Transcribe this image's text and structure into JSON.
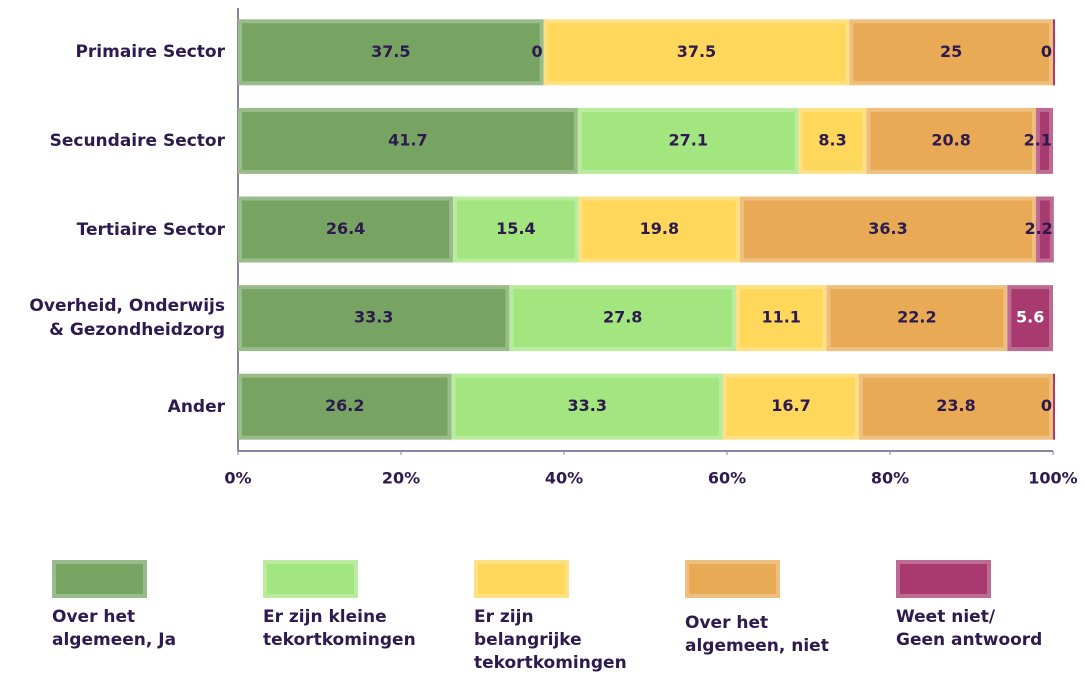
{
  "chart_data": {
    "type": "stacked-bar-horizontal",
    "categories": [
      "Primaire Sector",
      "Secundaire Sector",
      "Tertiaire Sector",
      "Overheid, Onderwijs\n& Gezondheidzorg",
      "Ander"
    ],
    "series": [
      {
        "name": "Over het\nalgemeen, Ja",
        "color": "#78a463",
        "values": [
          37.5,
          41.7,
          26.4,
          33.3,
          26.2
        ]
      },
      {
        "name": "Er zijn kleine\ntekortkomingen",
        "color": "#a3e67f",
        "values": [
          0,
          27.1,
          15.4,
          27.8,
          33.3
        ]
      },
      {
        "name": "Er zijn\nbelangrijke\ntekortkomingen",
        "color": "#ffd75a",
        "values": [
          37.5,
          8.3,
          19.8,
          11.1,
          16.7
        ]
      },
      {
        "name": "Over het\nalgemeen, niet",
        "color": "#e9aa55",
        "values": [
          25,
          20.8,
          36.3,
          22.2,
          23.8
        ]
      },
      {
        "name": "Weet niet/\nGeen antwoord",
        "color": "#a83a70",
        "values": [
          0,
          2.1,
          2.2,
          5.6,
          0
        ]
      }
    ],
    "xlim": [
      0,
      100
    ],
    "xticks": [
      {
        "value": 0,
        "label": "0%"
      },
      {
        "value": 20,
        "label": "20%"
      },
      {
        "value": 40,
        "label": "40%"
      },
      {
        "value": 60,
        "label": "60%"
      },
      {
        "value": 80,
        "label": "80%"
      },
      {
        "value": 100,
        "label": "100%"
      }
    ]
  }
}
